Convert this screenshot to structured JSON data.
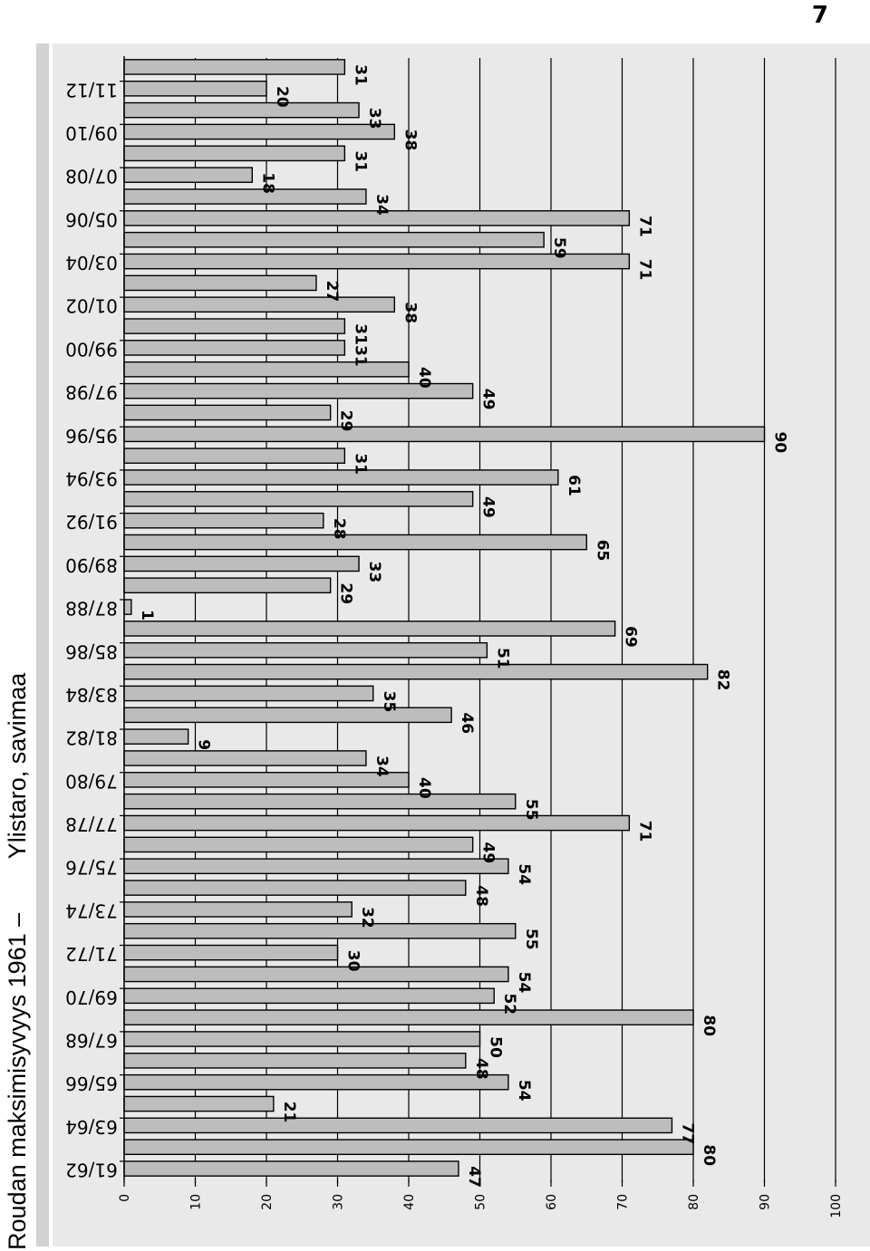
{
  "page_number": "7",
  "chart_data": {
    "type": "bar",
    "orientation": "horizontal",
    "title": "Roudan maksimisyvyys 1961 –        Ylistaro, savimaa",
    "xlabel": "",
    "ylabel": "",
    "xlim": [
      0,
      100
    ],
    "xticks": [
      0,
      10,
      20,
      30,
      40,
      50,
      60,
      70,
      80,
      90,
      100
    ],
    "grid": true,
    "legend": "none",
    "bar_color": "#bdbdbd",
    "category_tick_labels": [
      "61/62",
      "63/64",
      "65/66",
      "67/68",
      "69/70",
      "71/72",
      "73/74",
      "75/76",
      "77/78",
      "79/80",
      "81/82",
      "83/84",
      "85/86",
      "87/88",
      "89/90",
      "91/92",
      "93/94",
      "95/96",
      "97/98",
      "99/00",
      "01/02",
      "03/04",
      "05/06",
      "07/08",
      "09/10",
      "11/12"
    ],
    "values": [
      47,
      80,
      77,
      21,
      54,
      48,
      50,
      80,
      52,
      54,
      30,
      55,
      32,
      48,
      54,
      49,
      71,
      55,
      40,
      34,
      9,
      46,
      35,
      82,
      51,
      69,
      1,
      29,
      33,
      65,
      28,
      49,
      61,
      31,
      90,
      29,
      49,
      40,
      31,
      31,
      38,
      27,
      71,
      59,
      71,
      34,
      18,
      31,
      38,
      33,
      20,
      31
    ]
  }
}
